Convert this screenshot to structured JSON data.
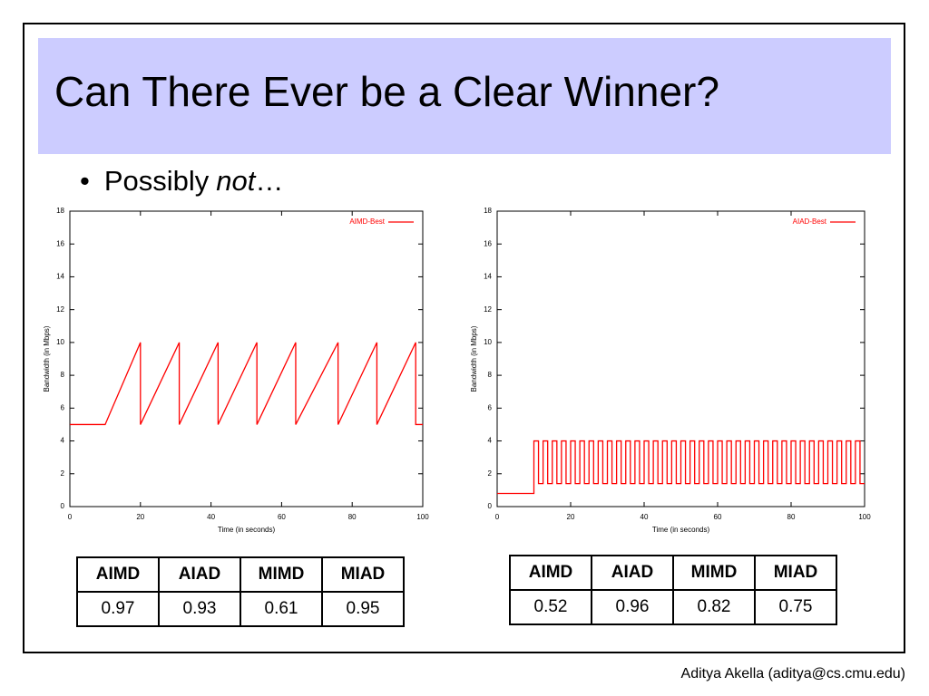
{
  "title": "Can There Ever be a Clear Winner?",
  "bullet": [
    "Possibly",
    "not",
    "…"
  ],
  "chart_data": [
    {
      "type": "line",
      "xlabel": "Time (in seconds)",
      "ylabel": "Bandwidth (in Mbps)",
      "x": [
        0,
        10,
        20,
        20,
        31,
        31,
        42,
        42,
        53,
        53,
        64,
        64,
        76,
        76,
        87,
        87,
        98,
        98,
        100
      ],
      "series": [
        {
          "name": "AIMD-Best",
          "color": "#ff0000",
          "values": [
            5,
            5,
            10,
            5,
            10,
            5,
            10,
            5,
            10,
            5,
            10,
            5,
            10,
            5,
            10,
            5,
            10,
            5,
            5
          ]
        }
      ],
      "xlim": [
        0,
        100
      ],
      "ylim": [
        0,
        18
      ],
      "xticks": [
        0,
        20,
        40,
        60,
        80,
        100
      ],
      "yticks": [
        0,
        2,
        4,
        6,
        8,
        10,
        12,
        14,
        16,
        18
      ],
      "legend": "top-right"
    },
    {
      "type": "line",
      "xlabel": "Time (in seconds)",
      "ylabel": "Bandwidth (in Mbps)",
      "x": [
        0,
        10,
        10,
        11.25,
        11.25,
        12.5,
        12.5,
        13.75,
        13.75,
        15,
        15,
        16.25,
        16.25,
        17.5,
        17.5,
        18.75,
        18.75,
        20,
        20,
        21.25,
        21.25,
        22.5,
        22.5,
        23.75,
        23.75,
        25,
        25,
        26.25,
        26.25,
        27.5,
        27.5,
        28.75,
        28.75,
        30,
        30,
        31.25,
        31.25,
        32.5,
        32.5,
        33.75,
        33.75,
        35,
        35,
        36.25,
        36.25,
        37.5,
        37.5,
        38.75,
        38.75,
        40,
        40,
        41.25,
        41.25,
        42.5,
        42.5,
        43.75,
        43.75,
        45,
        45,
        46.25,
        46.25,
        47.5,
        47.5,
        48.75,
        48.75,
        50,
        50,
        51.25,
        51.25,
        52.5,
        52.5,
        53.75,
        53.75,
        55,
        55,
        56.25,
        56.25,
        57.5,
        57.5,
        58.75,
        58.75,
        60,
        60,
        61.25,
        61.25,
        62.5,
        62.5,
        63.75,
        63.75,
        65,
        65,
        66.25,
        66.25,
        67.5,
        67.5,
        68.75,
        68.75,
        70,
        70,
        71.25,
        71.25,
        72.5,
        72.5,
        73.75,
        73.75,
        75,
        75,
        76.25,
        76.25,
        77.5,
        77.5,
        78.75,
        78.75,
        80,
        80,
        81.25,
        81.25,
        82.5,
        82.5,
        83.75,
        83.75,
        85,
        85,
        86.25,
        86.25,
        87.5,
        87.5,
        88.75,
        88.75,
        90,
        90,
        91.25,
        91.25,
        92.5,
        92.5,
        93.75,
        93.75,
        95,
        95,
        96.25,
        96.25,
        97.5,
        97.5,
        98.75,
        98.75,
        100
      ],
      "series": [
        {
          "name": "AIAD-Best",
          "color": "#ff0000",
          "values": [
            0.8,
            0.8,
            4,
            4,
            1.4,
            1.4,
            4,
            4,
            1.4,
            1.4,
            4,
            4,
            1.4,
            1.4,
            4,
            4,
            1.4,
            1.4,
            4,
            4,
            1.4,
            1.4,
            4,
            4,
            1.4,
            1.4,
            4,
            4,
            1.4,
            1.4,
            4,
            4,
            1.4,
            1.4,
            4,
            4,
            1.4,
            1.4,
            4,
            4,
            1.4,
            1.4,
            4,
            4,
            1.4,
            1.4,
            4,
            4,
            1.4,
            1.4,
            4,
            4,
            1.4,
            1.4,
            4,
            4,
            1.4,
            1.4,
            4,
            4,
            1.4,
            1.4,
            4,
            4,
            1.4,
            1.4,
            4,
            4,
            1.4,
            1.4,
            4,
            4,
            1.4,
            1.4,
            4,
            4,
            1.4,
            1.4,
            4,
            4,
            1.4,
            1.4,
            4,
            4,
            1.4,
            1.4,
            4,
            4,
            1.4,
            1.4,
            4,
            4,
            1.4,
            1.4,
            4,
            4,
            1.4,
            1.4,
            4,
            4,
            1.4,
            1.4,
            4,
            4,
            1.4,
            1.4,
            4,
            4,
            1.4,
            1.4,
            4,
            4,
            1.4,
            1.4,
            4,
            4,
            1.4,
            1.4,
            4,
            4,
            1.4,
            1.4,
            4,
            4,
            1.4,
            1.4,
            4,
            4,
            1.4,
            1.4,
            4,
            4,
            1.4,
            1.4,
            4,
            4,
            1.4,
            1.4,
            4,
            4,
            1.4,
            1.4,
            4,
            4,
            1.4,
            1.4
          ]
        }
      ],
      "xlim": [
        0,
        100
      ],
      "ylim": [
        0,
        18
      ],
      "xticks": [
        0,
        20,
        40,
        60,
        80,
        100
      ],
      "yticks": [
        0,
        2,
        4,
        6,
        8,
        10,
        12,
        14,
        16,
        18
      ],
      "legend": "top-right"
    }
  ],
  "tables": [
    {
      "header": [
        "AIMD",
        "AIAD",
        "MIMD",
        "MIAD"
      ],
      "rows": [
        [
          0.97,
          0.93,
          0.61,
          0.95
        ]
      ]
    },
    {
      "header": [
        "AIMD",
        "AIAD",
        "MIMD",
        "MIAD"
      ],
      "rows": [
        [
          0.52,
          0.96,
          0.82,
          0.75
        ]
      ]
    }
  ],
  "footer": "Aditya Akella (aditya@cs.cmu.edu)"
}
